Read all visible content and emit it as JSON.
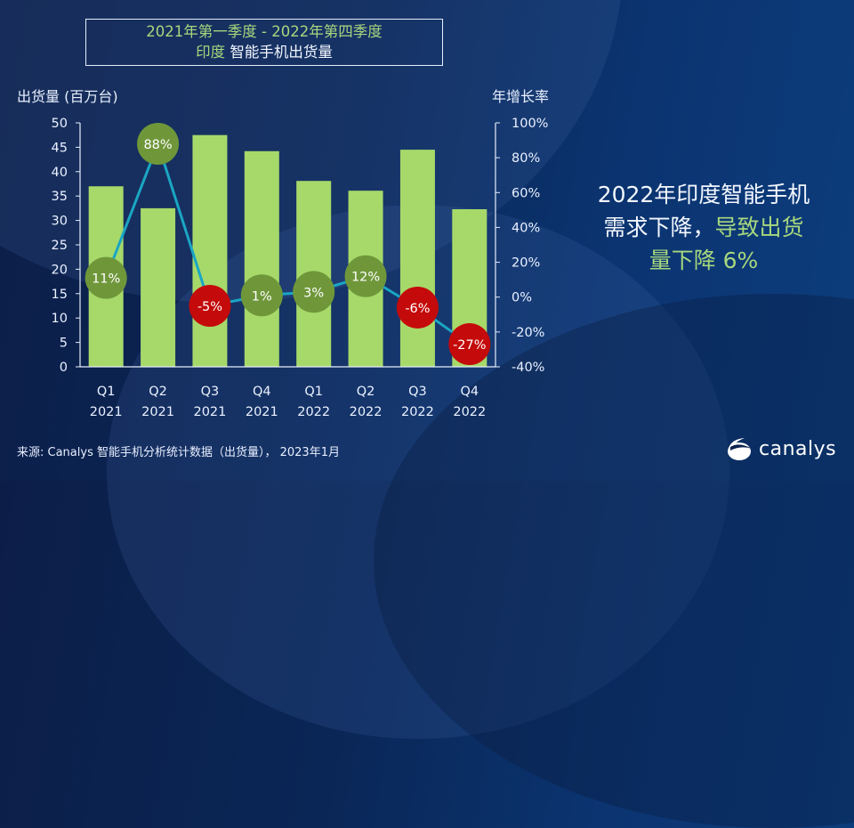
{
  "title": {
    "line1": "2021年第一季度 -  2022年第四季度",
    "line2_green": "印度",
    "line2_white": " 智能手机出货量"
  },
  "left_axis_title": "出货量 (百万台)",
  "right_axis_title": "年增长率",
  "headline": {
    "part1": "2022年印度智能手机",
    "part2": "需求下降，",
    "part3": "导致出货",
    "part4": "量下降 6%"
  },
  "footer": "来源: Canalys 智能手机分析统计数据（出货量），  2023年1月",
  "logo": {
    "text": "canalys",
    "icon": "canalys-logo-icon"
  },
  "colors": {
    "bar": "#a6d96a",
    "line": "#1aa6c4",
    "positive_marker": "#6f973a",
    "negative_marker": "#c40a0a",
    "accent_text": "#a7d77e"
  },
  "chart_data": {
    "type": "bar",
    "title": "2021年第一季度 - 2022年第四季度 印度 智能手机出货量",
    "categories": [
      "Q1 2021",
      "Q2 2021",
      "Q3 2021",
      "Q4 2021",
      "Q1 2022",
      "Q2 2022",
      "Q3 2022",
      "Q4 2022"
    ],
    "category_lines": [
      [
        "Q1",
        "2021"
      ],
      [
        "Q2",
        "2021"
      ],
      [
        "Q3",
        "2021"
      ],
      [
        "Q4",
        "2021"
      ],
      [
        "Q1",
        "2022"
      ],
      [
        "Q2",
        "2022"
      ],
      [
        "Q3",
        "2022"
      ],
      [
        "Q4",
        "2022"
      ]
    ],
    "series": [
      {
        "name": "出货量 (百万台)",
        "type": "bar",
        "axis": "left",
        "values": [
          37.0,
          32.5,
          47.5,
          44.2,
          38.1,
          36.1,
          44.5,
          32.3
        ]
      },
      {
        "name": "年增长率",
        "type": "line",
        "axis": "right",
        "values": [
          11,
          88,
          -5,
          1,
          3,
          12,
          -6,
          -27
        ],
        "labels": [
          "11%",
          "88%",
          "-5%",
          "1%",
          "3%",
          "12%",
          "-6%",
          "-27%"
        ]
      }
    ],
    "xlabel": "",
    "ylabel": "出货量 (百万台)",
    "ylabel_right": "年增长率",
    "ylim": [
      0,
      50
    ],
    "ylim_right": [
      -40,
      100
    ],
    "yticks": [
      0,
      5,
      10,
      15,
      20,
      25,
      30,
      35,
      40,
      45,
      50
    ],
    "yticks_right": [
      "-40%",
      "-20%",
      "0%",
      "20%",
      "40%",
      "60%",
      "80%",
      "100%"
    ],
    "grid": false,
    "legend": "none"
  }
}
